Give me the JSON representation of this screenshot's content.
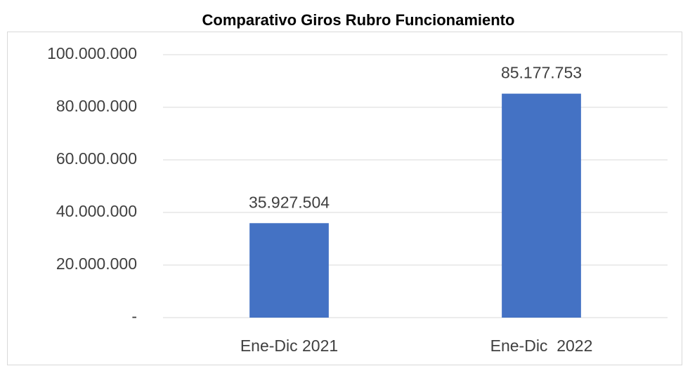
{
  "chart_data": {
    "type": "bar",
    "title": "Comparativo Giros Rubro Funcionamiento",
    "categories": [
      "Ene-Dic 2021",
      "Ene-Dic  2022"
    ],
    "values": [
      35927504,
      85177753
    ],
    "value_labels": [
      "35.927.504",
      "85.177.753"
    ],
    "color": "#4472c4",
    "ylim": [
      0,
      100000000
    ],
    "yticks": [
      {
        "value": 0,
        "label": "-"
      },
      {
        "value": 20000000,
        "label": "20.000.000"
      },
      {
        "value": 40000000,
        "label": "40.000.000"
      },
      {
        "value": 60000000,
        "label": "60.000.000"
      },
      {
        "value": 80000000,
        "label": "80.000.000"
      },
      {
        "value": 100000000,
        "label": "100.000.000"
      }
    ],
    "grid": true
  }
}
